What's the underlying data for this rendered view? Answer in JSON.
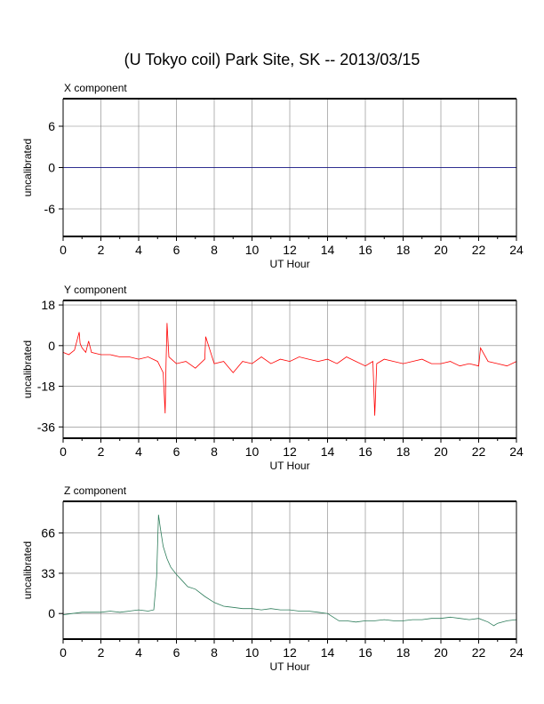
{
  "title": "(U Tokyo coil) Park Site, SK -- 2013/03/15",
  "chart_data": [
    {
      "type": "line",
      "title": "X component",
      "xlabel": "UT Hour",
      "ylabel": "uncalibrated",
      "xlim": [
        0,
        24
      ],
      "ylim": [
        -10,
        10
      ],
      "xticks": [
        0,
        2,
        4,
        6,
        8,
        10,
        12,
        14,
        16,
        18,
        20,
        22,
        24
      ],
      "yticks": [
        -6,
        0,
        6
      ],
      "grid": true,
      "series": [
        {
          "color": "#000080",
          "x": [
            0,
            24
          ],
          "y": [
            0,
            0
          ]
        }
      ]
    },
    {
      "type": "line",
      "title": "Y component",
      "xlabel": "UT Hour",
      "ylabel": "uncalibrated",
      "xlim": [
        0,
        24
      ],
      "ylim": [
        -41,
        20
      ],
      "xticks": [
        0,
        2,
        4,
        6,
        8,
        10,
        12,
        14,
        16,
        18,
        20,
        22,
        24
      ],
      "yticks": [
        -36,
        -18,
        0,
        18
      ],
      "grid": true,
      "series": [
        {
          "color": "#ff0000",
          "x": [
            0,
            0.3,
            0.6,
            0.85,
            0.9,
            1.0,
            1.2,
            1.35,
            1.5,
            2.0,
            2.5,
            3.0,
            3.5,
            4.0,
            4.5,
            5.0,
            5.3,
            5.4,
            5.45,
            5.5,
            5.6,
            6.0,
            6.5,
            7.0,
            7.5,
            7.55,
            8.0,
            8.5,
            9.0,
            9.5,
            10.0,
            10.5,
            11.0,
            11.5,
            12.0,
            12.5,
            13.0,
            13.5,
            14.0,
            14.5,
            15.0,
            15.5,
            16.0,
            16.4,
            16.5,
            16.6,
            17.0,
            17.5,
            18.0,
            18.5,
            19.0,
            19.5,
            20.0,
            20.5,
            21.0,
            21.5,
            22.0,
            22.1,
            22.5,
            23.0,
            23.5,
            24.0
          ],
          "y": [
            -3,
            -4,
            -2,
            6,
            1,
            -1,
            -3,
            2,
            -3,
            -4,
            -4,
            -5,
            -5,
            -6,
            -5,
            -7,
            -12,
            -30,
            -8,
            10,
            -5,
            -8,
            -7,
            -10,
            -6,
            4,
            -8,
            -7,
            -12,
            -7,
            -8,
            -5,
            -8,
            -6,
            -7,
            -5,
            -6,
            -7,
            -6,
            -8,
            -5,
            -7,
            -9,
            -7,
            -31,
            -8,
            -6,
            -7,
            -8,
            -7,
            -6,
            -8,
            -8,
            -7,
            -9,
            -8,
            -9,
            -1,
            -7,
            -8,
            -9,
            -7
          ]
        }
      ]
    },
    {
      "type": "line",
      "title": "Z component",
      "xlabel": "UT Hour",
      "ylabel": "uncalibrated",
      "xlim": [
        0,
        24
      ],
      "ylim": [
        -21,
        92
      ],
      "xticks": [
        0,
        2,
        4,
        6,
        8,
        10,
        12,
        14,
        16,
        18,
        20,
        22,
        24
      ],
      "yticks": [
        0,
        33,
        66
      ],
      "grid": true,
      "series": [
        {
          "color": "#2e7d5b",
          "x": [
            0,
            0.5,
            1.0,
            1.5,
            2.0,
            2.5,
            3.0,
            3.5,
            4.0,
            4.5,
            4.8,
            4.95,
            5.05,
            5.15,
            5.3,
            5.5,
            5.7,
            6.0,
            6.3,
            6.6,
            7.0,
            7.5,
            8.0,
            8.5,
            9.0,
            9.5,
            10.0,
            10.5,
            11.0,
            11.5,
            12.0,
            12.5,
            13.0,
            13.5,
            14.0,
            14.3,
            14.6,
            15.0,
            15.5,
            16.0,
            16.5,
            17.0,
            17.5,
            18.0,
            18.5,
            19.0,
            19.5,
            20.0,
            20.5,
            21.0,
            21.5,
            22.0,
            22.5,
            22.8,
            23.0,
            23.5,
            24.0
          ],
          "y": [
            -1,
            0,
            1,
            1,
            1,
            2,
            1,
            2,
            3,
            2,
            3,
            30,
            81,
            70,
            55,
            45,
            38,
            32,
            27,
            22,
            20,
            14,
            9,
            6,
            5,
            4,
            4,
            3,
            4,
            3,
            3,
            2,
            2,
            1,
            0,
            -3,
            -6,
            -6,
            -7,
            -6,
            -6,
            -5,
            -6,
            -6,
            -5,
            -5,
            -4,
            -4,
            -3,
            -4,
            -5,
            -4,
            -7,
            -10,
            -8,
            -6,
            -5
          ]
        }
      ]
    }
  ]
}
